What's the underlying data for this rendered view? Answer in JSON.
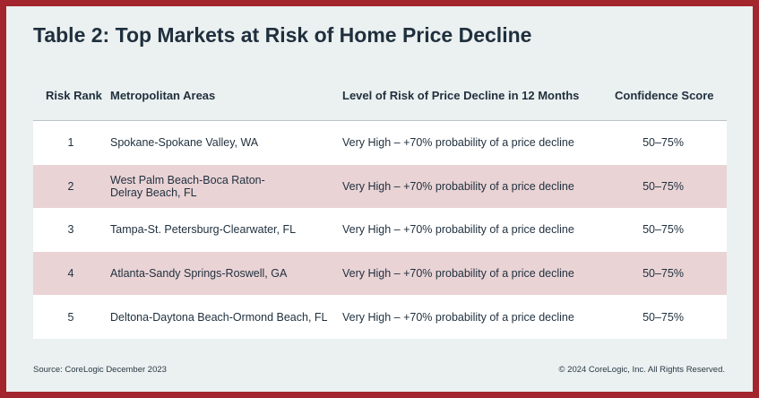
{
  "chart_data": {
    "type": "table",
    "title": "Table 2: Top Markets at Risk of Home Price Decline",
    "columns": [
      "Risk Rank",
      "Metropolitan Areas",
      "Level of Risk of Price Decline in 12 Months",
      "Confidence Score"
    ],
    "rows": [
      {
        "rank": "1",
        "area": "Spokane-Spokane Valley, WA",
        "level": "Very High – +70% probability of a price decline",
        "score": "50–75%"
      },
      {
        "rank": "2",
        "area": "West Palm Beach-Boca Raton-\nDelray Beach, FL",
        "level": "Very High – +70% probability of a price decline",
        "score": "50–75%"
      },
      {
        "rank": "3",
        "area": "Tampa-St. Petersburg-Clearwater, FL",
        "level": "Very High – +70% probability of a price decline",
        "score": "50–75%"
      },
      {
        "rank": "4",
        "area": "Atlanta-Sandy Springs-Roswell, GA",
        "level": "Very High – +70% probability of a price decline",
        "score": "50–75%"
      },
      {
        "rank": "5",
        "area": "Deltona-Daytona Beach-Ormond Beach, FL",
        "level": "Very High – +70% probability of a price decline",
        "score": "50–75%"
      }
    ],
    "source": "Source: CoreLogic December 2023",
    "copyright": "© 2024 CoreLogic, Inc. All Rights Reserved."
  },
  "colors": {
    "border": "#a3252d",
    "background": "#ebf0f0",
    "row_white": "#ffffff",
    "row_alt": "#e9d3d5",
    "text": "#1f2f3d"
  }
}
